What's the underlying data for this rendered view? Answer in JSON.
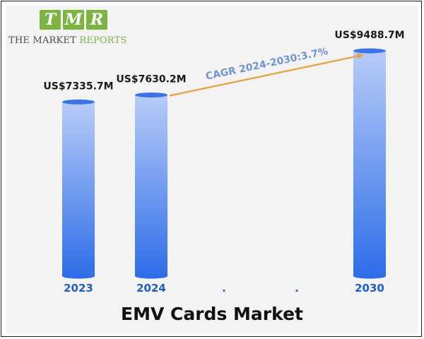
{
  "brand": {
    "tiles": [
      "T",
      "M",
      "R"
    ],
    "name_part1": "THE MARKET ",
    "name_part2": "REPORTS"
  },
  "colors": {
    "bar_top": "#b8ccf8",
    "bar_bottom": "#2f6ee8",
    "axis_label": "#1f5fbf",
    "arrow": "#e6a23c",
    "cagr_text": "#6f93d4",
    "logo_green": "#7cb342"
  },
  "chart_data": {
    "type": "bar",
    "title": "EMV Cards Market",
    "categories": [
      "2023",
      "2024",
      ".",
      ".",
      "2030"
    ],
    "values": [
      7335.7,
      7630.2,
      null,
      null,
      9488.7
    ],
    "data_labels": [
      "US$7335.7M",
      "US$7630.2M",
      "",
      "",
      "US$9488.7M"
    ],
    "annotation": "CAGR 2024-2030:3.7%",
    "xlabel": "",
    "ylabel": "",
    "grid": false,
    "legend": "none"
  }
}
